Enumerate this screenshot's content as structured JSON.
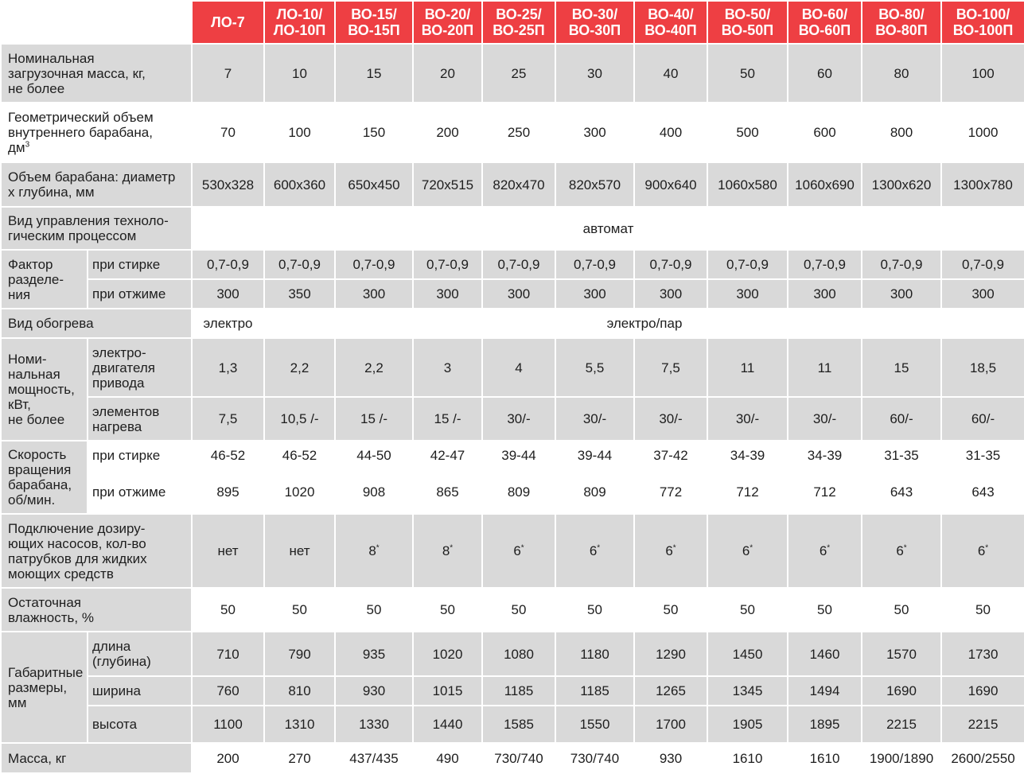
{
  "columns": [
    [
      "ЛО-7"
    ],
    [
      "ЛО-10/",
      "ЛО-10П"
    ],
    [
      "ВО-15/",
      "ВО-15П"
    ],
    [
      "ВО-20/",
      "ВО-20П"
    ],
    [
      "ВО-25/",
      "ВО-25П"
    ],
    [
      "ВО-30/",
      "ВО-30П"
    ],
    [
      "ВО-40/",
      "ВО-40П"
    ],
    [
      "ВО-50/",
      "ВО-50П"
    ],
    [
      "ВО-60/",
      "ВО-60П"
    ],
    [
      "ВО-80/",
      "ВО-80П"
    ],
    [
      "ВО-100/",
      "ВО-100П"
    ]
  ],
  "rows": {
    "load_mass": {
      "label": [
        "Номинальная",
        "загрузочная масса, кг,",
        "не более"
      ],
      "values": [
        "7",
        "10",
        "15",
        "20",
        "25",
        "30",
        "40",
        "50",
        "60",
        "80",
        "100"
      ]
    },
    "drum_volume": {
      "label": [
        "Геометрический объем",
        "внутреннего барабана,",
        "дм"
      ],
      "label_sup": "3",
      "values": [
        "70",
        "100",
        "150",
        "200",
        "250",
        "300",
        "400",
        "500",
        "600",
        "800",
        "1000"
      ]
    },
    "drum_size": {
      "label": [
        "Объем барабана: диаметр",
        "х глубина, мм"
      ],
      "values": [
        "530x328",
        "600x360",
        "650x450",
        "720x515",
        "820x470",
        "820x570",
        "900x640",
        "1060x580",
        "1060x690",
        "1300x620",
        "1300x780"
      ]
    },
    "control": {
      "label": [
        "Вид управления техноло-",
        "гическим процессом"
      ],
      "value": "автомат"
    },
    "separation": {
      "label": [
        "Фактор",
        "разделе-",
        "ния"
      ],
      "wash": {
        "label": "при стирке",
        "values": [
          "0,7-0,9",
          "0,7-0,9",
          "0,7-0,9",
          "0,7-0,9",
          "0,7-0,9",
          "0,7-0,9",
          "0,7-0,9",
          "0,7-0,9",
          "0,7-0,9",
          "0,7-0,9",
          "0,7-0,9"
        ]
      },
      "spin": {
        "label": "при отжиме",
        "values": [
          "300",
          "350",
          "300",
          "300",
          "300",
          "300",
          "300",
          "300",
          "300",
          "300",
          "300"
        ]
      }
    },
    "heating": {
      "label": "Вид обогрева",
      "first": "электро",
      "rest": "электро/пар"
    },
    "power": {
      "label": [
        "Номи-",
        "нальная",
        "мощность,",
        "кВт,",
        "не более"
      ],
      "motor": {
        "label": [
          "электро-",
          "двигателя",
          "привода"
        ],
        "values": [
          "1,3",
          "2,2",
          "2,2",
          "3",
          "4",
          "5,5",
          "7,5",
          "11",
          "11",
          "15",
          "18,5"
        ]
      },
      "heater": {
        "label": [
          "элементов",
          "нагрева"
        ],
        "values": [
          "7,5",
          "10,5 /-",
          "15 /-",
          "15 /-",
          "30/-",
          "30/-",
          "30/-",
          "30/-",
          "30/-",
          "60/-",
          "60/-"
        ]
      }
    },
    "speed": {
      "label": [
        "Скорость",
        "вращения",
        "барабана,",
        "об/мин."
      ],
      "wash": {
        "label": "при стирке",
        "values": [
          "46-52",
          "46-52",
          "44-50",
          "42-47",
          "39-44",
          "39-44",
          "37-42",
          "34-39",
          "34-39",
          "31-35",
          "31-35"
        ]
      },
      "spin": {
        "label": "при отжиме",
        "values": [
          "895",
          "1020",
          "908",
          "865",
          "809",
          "809",
          "772",
          "712",
          "712",
          "643",
          "643"
        ]
      }
    },
    "pumps": {
      "label": [
        "Подключение дозиру-",
        "ющих насосов, кол-во",
        "патрубков для жидких",
        "моющих средств"
      ],
      "values": [
        "нет",
        "нет",
        "8",
        "8",
        "6",
        "6",
        "6",
        "6",
        "6",
        "6",
        "6"
      ],
      "sup": [
        "",
        "",
        "*",
        "*",
        "*",
        "*",
        "*",
        "*",
        "*",
        "*",
        "*"
      ]
    },
    "moisture": {
      "label": [
        "Остаточная",
        "влажность, %"
      ],
      "values": [
        "50",
        "50",
        "50",
        "50",
        "50",
        "50",
        "50",
        "50",
        "50",
        "50",
        "50"
      ]
    },
    "dimensions": {
      "label": [
        "Габаритные",
        "размеры,",
        "мм"
      ],
      "length": {
        "label": [
          "длина",
          "(глубина)"
        ],
        "values": [
          "710",
          "790",
          "935",
          "1020",
          "1080",
          "1180",
          "1290",
          "1450",
          "1460",
          "1570",
          "1730"
        ]
      },
      "width": {
        "label": "ширина",
        "values": [
          "760",
          "810",
          "930",
          "1015",
          "1185",
          "1185",
          "1265",
          "1345",
          "1494",
          "1690",
          "1690"
        ]
      },
      "height": {
        "label": "высота",
        "values": [
          "1100",
          "1310",
          "1330",
          "1440",
          "1585",
          "1550",
          "1700",
          "1905",
          "1895",
          "2215",
          "2215"
        ]
      }
    },
    "mass": {
      "label": "Масса, кг",
      "values": [
        "200",
        "270",
        "437/435",
        "490",
        "730/740",
        "730/740",
        "930",
        "1610",
        "1610",
        "1900/1890",
        "2600/2550"
      ]
    }
  }
}
